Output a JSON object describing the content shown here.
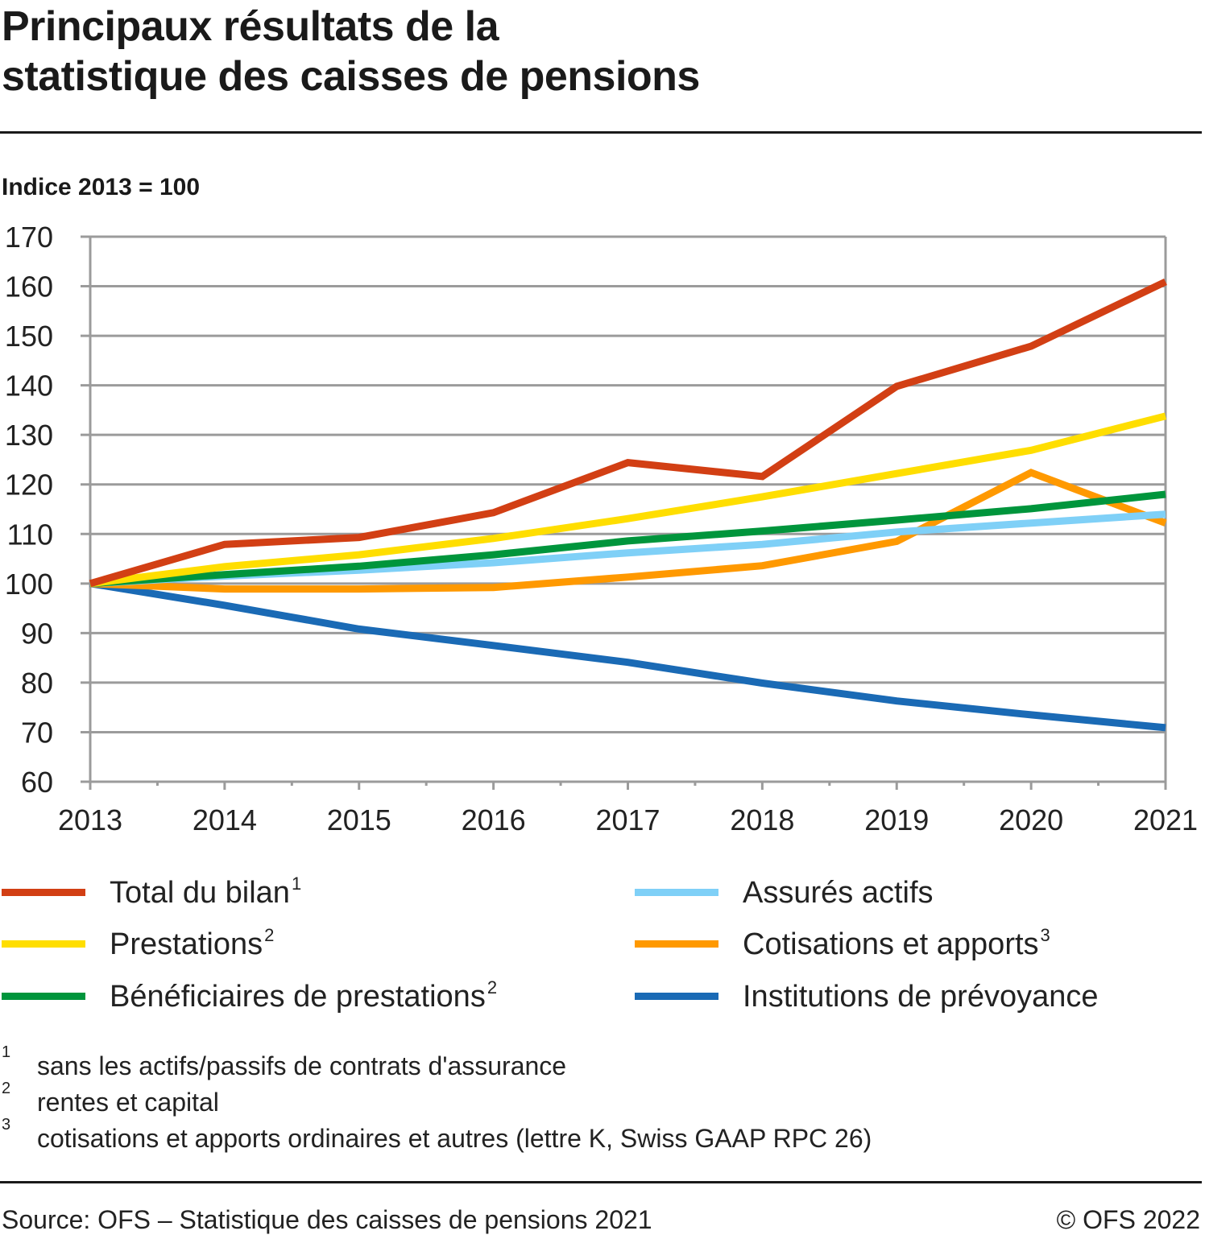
{
  "header": {
    "title_line1": "Principaux résultats de la",
    "title_line2": "statistique des caisses de pensions",
    "unit_label": "Indice 2013 = 100"
  },
  "chart_data": {
    "type": "line",
    "title": "Principaux résultats de la statistique des caisses de pensions",
    "ylabel": "Indice 2013 = 100",
    "xlabel": "",
    "x": [
      2013,
      2014,
      2015,
      2016,
      2017,
      2018,
      2019,
      2020,
      2021
    ],
    "x_tick_labels": [
      "2013",
      "2014",
      "2015",
      "2016",
      "2017",
      "2018",
      "2019",
      "2020",
      "2021"
    ],
    "ylim": [
      60,
      170
    ],
    "y_ticks": [
      60,
      70,
      80,
      90,
      100,
      110,
      120,
      130,
      140,
      150,
      160,
      170
    ],
    "grid": "horizontal",
    "legend_position": "bottom",
    "series": [
      {
        "name": "Total du bilan",
        "footnote": "1",
        "color": "#D23F14",
        "values": [
          100,
          107.9,
          109.3,
          114.3,
          124.4,
          121.6,
          139.8,
          147.9,
          160.9
        ]
      },
      {
        "name": "Prestations",
        "footnote": "2",
        "color": "#FFDE00",
        "values": [
          100,
          103.4,
          105.8,
          109.1,
          113.1,
          117.5,
          122.2,
          126.9,
          133.8
        ]
      },
      {
        "name": "Bénéficiaires de prestations",
        "footnote": "2",
        "color": "#00953C",
        "values": [
          100,
          101.8,
          103.5,
          105.8,
          108.6,
          110.6,
          112.8,
          115.1,
          118.0
        ]
      },
      {
        "name": "Assurés actifs",
        "footnote": "",
        "color": "#7FD0F7",
        "values": [
          100,
          101.5,
          102.7,
          104.2,
          106.2,
          107.9,
          110.4,
          112.2,
          114.0
        ]
      },
      {
        "name": "Cotisations et apports",
        "footnote": "3",
        "color": "#FF9900",
        "values": [
          100,
          98.9,
          98.9,
          99.2,
          101.3,
          103.6,
          108.5,
          122.4,
          112.2
        ]
      },
      {
        "name": "Institutions de prévoyance",
        "footnote": "",
        "color": "#1A6AB5",
        "values": [
          100,
          95.6,
          90.8,
          87.5,
          84.1,
          79.9,
          76.3,
          73.5,
          70.9
        ]
      }
    ]
  },
  "footnotes": [
    {
      "num": "1",
      "text": "sans les actifs/passifs de contrats d'assurance"
    },
    {
      "num": "2",
      "text": "rentes et capital"
    },
    {
      "num": "3",
      "text": "cotisations et apports ordinaires et autres (lettre K, Swiss GAAP RPC 26)"
    }
  ],
  "footer": {
    "source": "Source: OFS – Statistique des caisses de pensions 2021",
    "copyright": "© OFS 2022"
  }
}
